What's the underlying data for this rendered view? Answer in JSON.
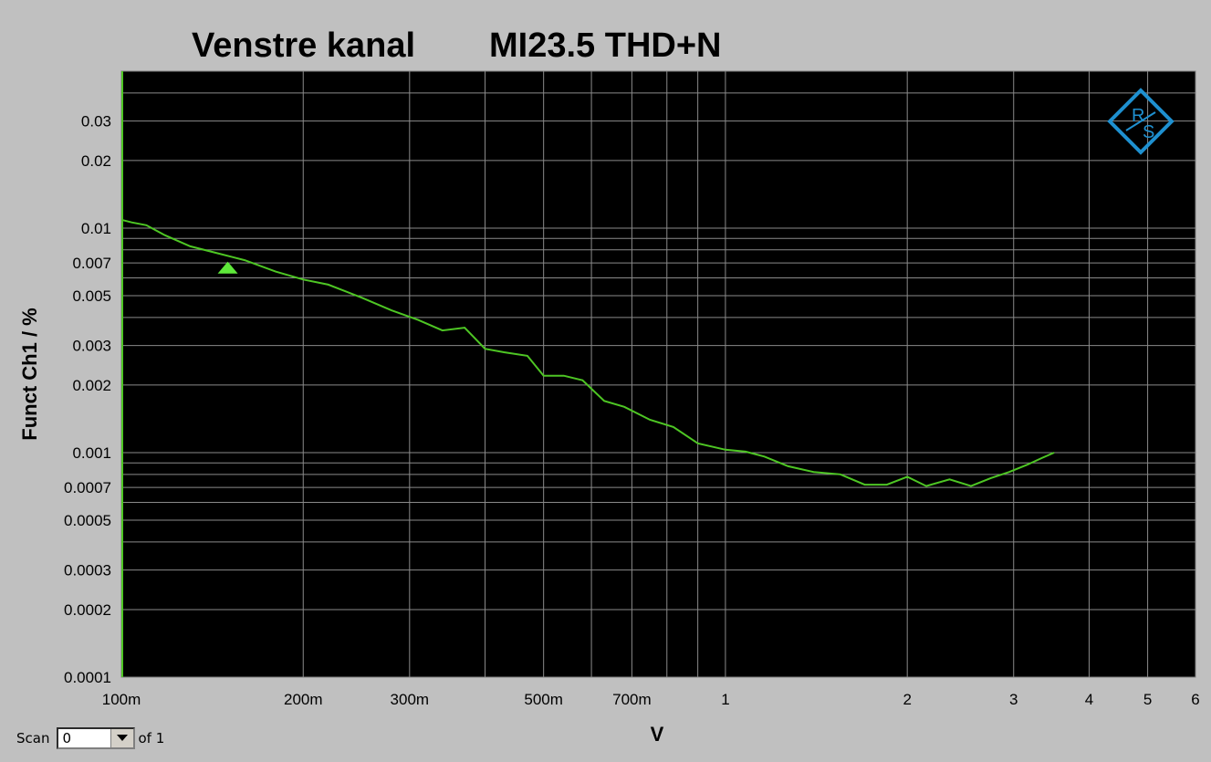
{
  "chart_data": {
    "type": "line",
    "title_left": "Venstre kanal",
    "title_right": "MI23.5 THD+N",
    "xlabel": "V",
    "ylabel": "Funct Ch1 / %",
    "x_scale": "log",
    "y_scale": "log",
    "xlim": [
      0.1,
      6
    ],
    "ylim": [
      0.0001,
      0.05
    ],
    "grid": true,
    "background": "#000000",
    "line_color": "#4ec624",
    "marker_color": "#5ee83a",
    "x_ticks": [
      {
        "v": 0.1,
        "label": "100m"
      },
      {
        "v": 0.2,
        "label": "200m"
      },
      {
        "v": 0.3,
        "label": "300m"
      },
      {
        "v": 0.5,
        "label": "500m"
      },
      {
        "v": 0.7,
        "label": "700m"
      },
      {
        "v": 1,
        "label": "1"
      },
      {
        "v": 2,
        "label": "2"
      },
      {
        "v": 3,
        "label": "3"
      },
      {
        "v": 4,
        "label": "4"
      },
      {
        "v": 5,
        "label": "5"
      },
      {
        "v": 6,
        "label": "6"
      }
    ],
    "y_ticks": [
      {
        "v": 0.03,
        "label": "0.03"
      },
      {
        "v": 0.02,
        "label": "0.02"
      },
      {
        "v": 0.01,
        "label": "0.01"
      },
      {
        "v": 0.007,
        "label": "0.007"
      },
      {
        "v": 0.005,
        "label": "0.005"
      },
      {
        "v": 0.003,
        "label": "0.003"
      },
      {
        "v": 0.002,
        "label": "0.002"
      },
      {
        "v": 0.001,
        "label": "0.001"
      },
      {
        "v": 0.0007,
        "label": "0.0007"
      },
      {
        "v": 0.0005,
        "label": "0.0005"
      },
      {
        "v": 0.0003,
        "label": "0.0003"
      },
      {
        "v": 0.0002,
        "label": "0.0002"
      },
      {
        "v": 0.0001,
        "label": "0.0001"
      }
    ],
    "x_grid": [
      0.2,
      0.3,
      0.4,
      0.5,
      0.6,
      0.7,
      0.8,
      0.9,
      1,
      2,
      3,
      4,
      5
    ],
    "y_grid": [
      0.04,
      0.03,
      0.02,
      0.01,
      0.009,
      0.008,
      0.007,
      0.006,
      0.005,
      0.004,
      0.003,
      0.002,
      0.001,
      0.0009,
      0.0008,
      0.0007,
      0.0006,
      0.0005,
      0.0004,
      0.0003,
      0.0002
    ],
    "series": [
      {
        "x": [
          0.1,
          0.104,
          0.11,
          0.118,
          0.13,
          0.145,
          0.16,
          0.18,
          0.2,
          0.22,
          0.25,
          0.28,
          0.31,
          0.34,
          0.37,
          0.4,
          0.43,
          0.47,
          0.5,
          0.54,
          0.58,
          0.63,
          0.68,
          0.75,
          0.82,
          0.9,
          1.0,
          1.08,
          1.16,
          1.27,
          1.4,
          1.55,
          1.7,
          1.85,
          2.0,
          2.15,
          2.35,
          2.55,
          2.75,
          2.95,
          3.15,
          3.35,
          3.5
        ],
        "y": [
          0.0109,
          0.0106,
          0.0103,
          0.0093,
          0.0083,
          0.0077,
          0.0072,
          0.0064,
          0.0059,
          0.0056,
          0.0049,
          0.0043,
          0.0039,
          0.0035,
          0.0036,
          0.0029,
          0.0028,
          0.0027,
          0.0022,
          0.0022,
          0.0021,
          0.0017,
          0.0016,
          0.0014,
          0.0013,
          0.0011,
          0.00103,
          0.00101,
          0.00096,
          0.00087,
          0.00082,
          0.0008,
          0.00072,
          0.00072,
          0.00078,
          0.00071,
          0.00076,
          0.00071,
          0.00077,
          0.00082,
          0.00088,
          0.00095,
          0.001
        ]
      }
    ],
    "marker": {
      "type": "triangle",
      "x": 0.15,
      "y": 0.0067
    }
  },
  "logo": {
    "text_top": "R",
    "text_bottom": "S",
    "color": "#1e90d0"
  },
  "scan": {
    "label": "Scan",
    "value": "0",
    "suffix": "of 1"
  }
}
